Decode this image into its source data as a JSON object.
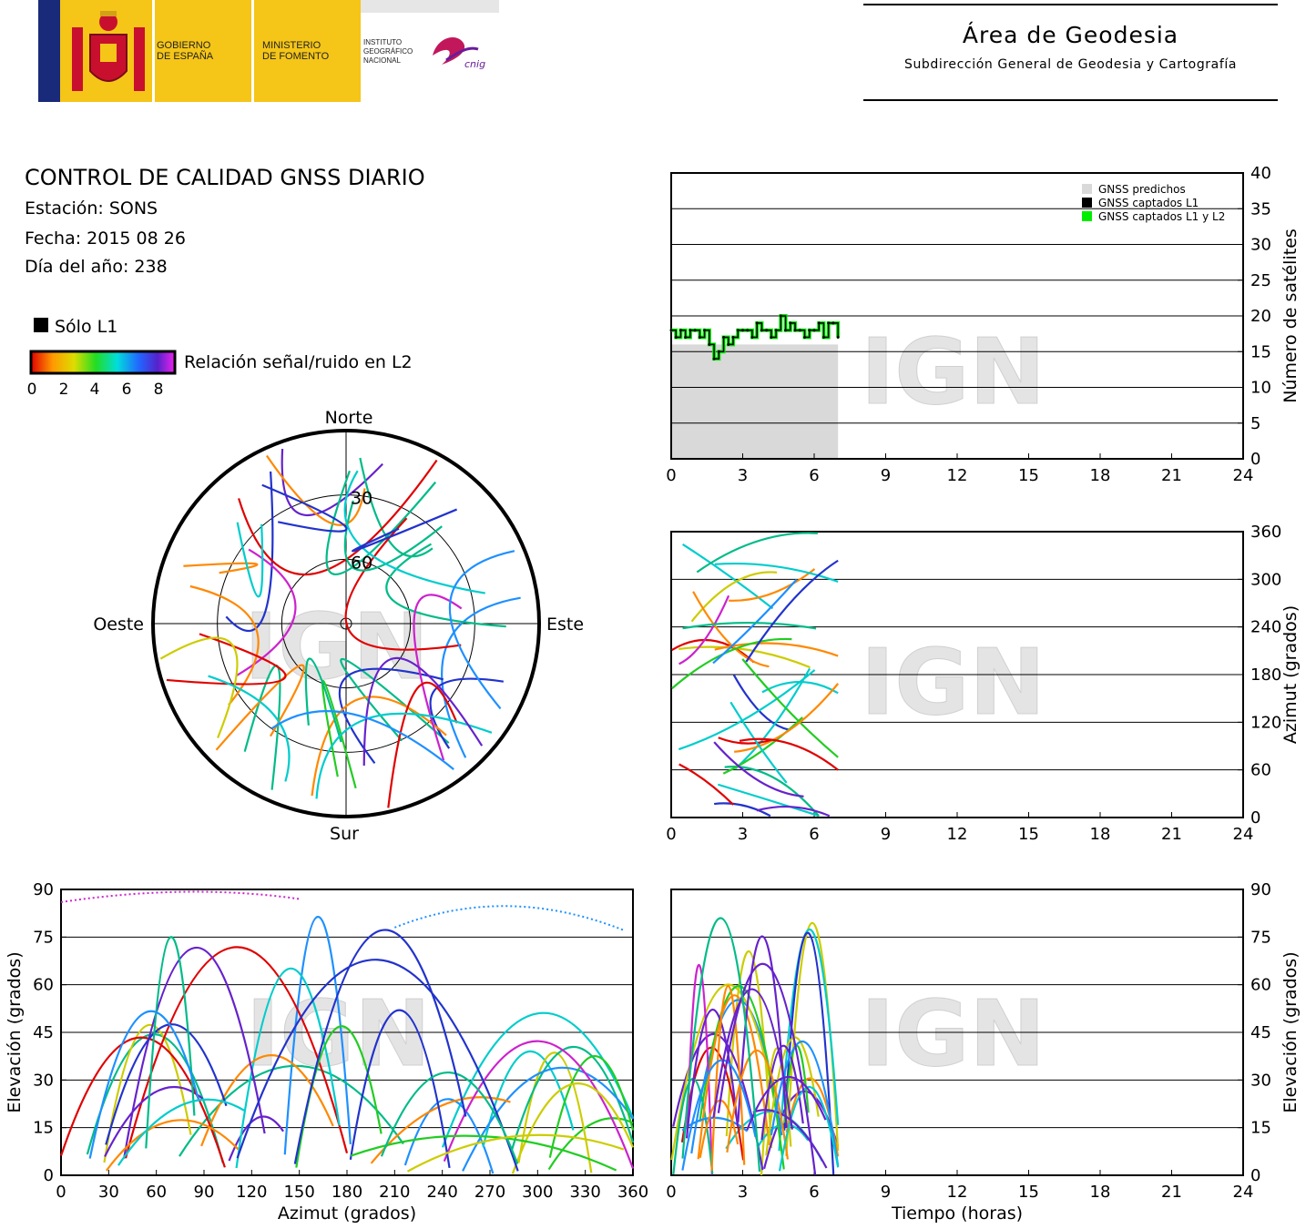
{
  "header": {
    "gov_line1": "GOBIERNO",
    "gov_line2": "DE ESPAÑA",
    "min_line1": "MINISTERIO",
    "min_line2": "DE FOMENTO",
    "inst_line1": "INSTITUTO",
    "inst_line2": "GEOGRÁFICO",
    "inst_line3": "NACIONAL",
    "cnig": "cnig",
    "area_title": "Área de Geodesia",
    "area_subtitle": "Subdirección General de Geodesia y Cartografía"
  },
  "report": {
    "title": "CONTROL DE CALIDAD GNSS DIARIO",
    "station": "Estación: SONS",
    "date": "Fecha: 2015 08 26",
    "doy": "Día del año: 238"
  },
  "legend": {
    "l1_only": "Sólo L1",
    "snr_label": "Relación señal/ruido en L2",
    "snr_ticks": [
      "0",
      "2",
      "4",
      "6",
      "8"
    ]
  },
  "watermark": "IGN",
  "colors": {
    "predicted": "#d9d9d9",
    "captured_l1": "#000000",
    "captured_l1l2": "#00ee00",
    "header_yellow": "#f5c518",
    "flag_blue": "#1a2a7a"
  },
  "chart_data": [
    {
      "type": "area",
      "id": "satellites",
      "x_ticks": [
        "0",
        "3",
        "6",
        "9",
        "12",
        "15",
        "18",
        "21",
        "24"
      ],
      "y_ticks": [
        "0",
        "5",
        "10",
        "15",
        "20",
        "25",
        "30",
        "35",
        "40"
      ],
      "xlim": [
        0,
        24
      ],
      "ylim": [
        0,
        40
      ],
      "ylabel": "Número de satélites",
      "legend": [
        "GNSS predichos",
        "GNSS captados L1",
        "GNSS captados L1 y L2"
      ],
      "legend_position": "top-right",
      "grid": true,
      "predicted": {
        "x": [
          0,
          7
        ],
        "values": [
          16,
          16
        ]
      },
      "captured": {
        "x": [
          0,
          0.2,
          0.4,
          0.6,
          0.8,
          1.0,
          1.2,
          1.4,
          1.6,
          1.8,
          2.0,
          2.2,
          2.4,
          2.6,
          2.8,
          3.0,
          3.2,
          3.4,
          3.6,
          3.8,
          4.0,
          4.2,
          4.4,
          4.6,
          4.8,
          5.0,
          5.2,
          5.4,
          5.6,
          5.8,
          6.0,
          6.2,
          6.4,
          6.6,
          6.8,
          7.0
        ],
        "values": [
          18,
          17,
          18,
          17,
          18,
          18,
          17,
          18,
          16,
          14,
          15,
          17,
          16,
          17,
          18,
          18,
          18,
          17,
          19,
          18,
          18,
          17,
          18,
          20,
          18,
          19,
          18,
          18,
          17,
          18,
          18,
          19,
          17,
          19,
          19,
          17
        ]
      }
    },
    {
      "type": "scatter",
      "id": "azimuth",
      "x_ticks": [
        "0",
        "3",
        "6",
        "9",
        "12",
        "15",
        "18",
        "21",
        "24"
      ],
      "y_ticks": [
        "0",
        "60",
        "120",
        "180",
        "240",
        "300",
        "360"
      ],
      "xlim": [
        0,
        24
      ],
      "ylim": [
        0,
        360
      ],
      "ylabel": "Azimut (grados)",
      "grid": true,
      "note": "satellite azimuth tracks from 0 to 7 h"
    },
    {
      "type": "scatter",
      "id": "elev_vs_az",
      "x_ticks": [
        "0",
        "30",
        "60",
        "90",
        "120",
        "150",
        "180",
        "210",
        "240",
        "270",
        "300",
        "330",
        "360"
      ],
      "y_ticks": [
        "0",
        "15",
        "30",
        "45",
        "60",
        "75",
        "90"
      ],
      "xlim": [
        0,
        360
      ],
      "ylim": [
        0,
        90
      ],
      "xlabel": "Azimut (grados)",
      "ylabel": "Elevación (grados)",
      "grid": true
    },
    {
      "type": "scatter",
      "id": "elev_vs_time",
      "x_ticks": [
        "0",
        "3",
        "6",
        "9",
        "12",
        "15",
        "18",
        "21",
        "24"
      ],
      "y_ticks": [
        "0",
        "15",
        "30",
        "45",
        "60",
        "75",
        "90"
      ],
      "xlim": [
        0,
        24
      ],
      "ylim": [
        0,
        90
      ],
      "xlabel": "Tiempo (horas)",
      "ylabel": "Elevación (grados)",
      "grid": true
    },
    {
      "type": "scatter",
      "id": "skyplot",
      "north": "Norte",
      "south": "Sur",
      "east": "Este",
      "west": "Oeste",
      "ring_labels": [
        "30",
        "60"
      ]
    }
  ]
}
